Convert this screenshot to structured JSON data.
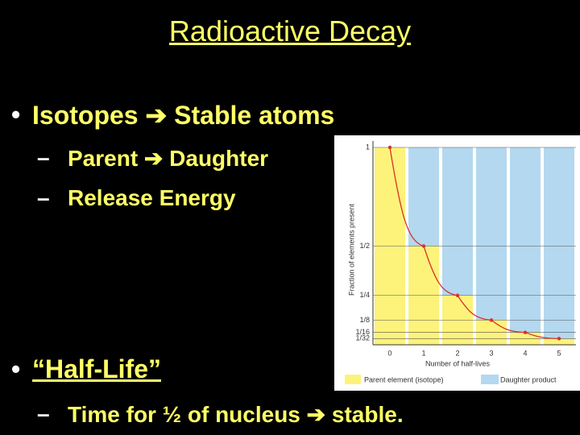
{
  "slide": {
    "title": "Radioactive Decay",
    "bullets": [
      {
        "text": "Isotopes ➔ Stable atoms",
        "sub": [
          "Parent ➔ Daughter",
          "Release Energy"
        ]
      },
      {
        "text": "“Half-Life”",
        "sub": [
          "Time for ½ of nucleus ➔ stable."
        ]
      }
    ]
  },
  "chart_data": {
    "type": "stacked-bar-line",
    "ylabel": "Fraction of elements present",
    "xlabel": "Number of half-lives",
    "categories": [
      "0",
      "1",
      "2",
      "3",
      "4",
      "5"
    ],
    "series": [
      {
        "name": "Parent element (isotope)",
        "color": "#fdf27a",
        "values": [
          1,
          0.5,
          0.25,
          0.125,
          0.0625,
          0.03125
        ]
      },
      {
        "name": "Daughter product",
        "color": "#b3d8ef",
        "values": [
          0,
          0.5,
          0.75,
          0.875,
          0.9375,
          0.96875
        ]
      }
    ],
    "line_color": "#d8322a",
    "ylim": [
      0,
      1
    ],
    "yticks": [
      {
        "value": 1,
        "label": "1"
      },
      {
        "value": 0.5,
        "label": "1/2"
      },
      {
        "value": 0.25,
        "label": "1/4"
      },
      {
        "value": 0.125,
        "label": "1/8"
      },
      {
        "value": 0.0625,
        "label": "1/16"
      },
      {
        "value": 0.03125,
        "label": "1/32"
      }
    ],
    "grid": true
  }
}
